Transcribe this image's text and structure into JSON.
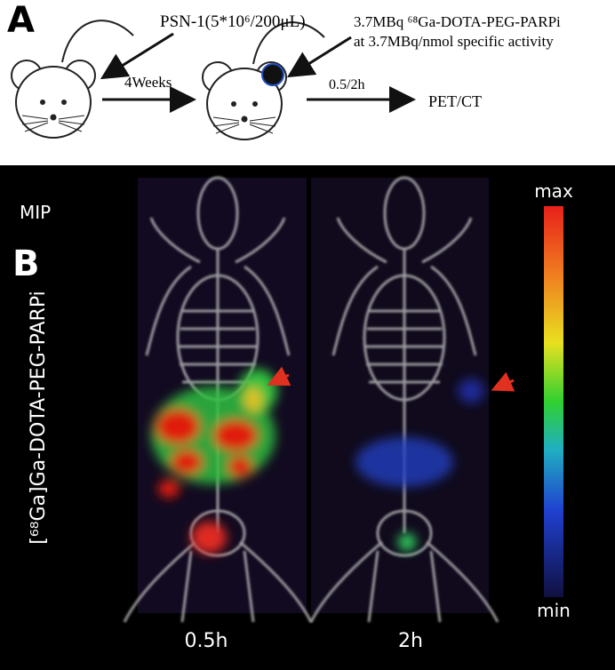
{
  "panel_a": {
    "label": "A",
    "injection": "PSN-1(5*10⁶/200μL)",
    "interval": "4Weeks",
    "tracer_line1": "3.7MBq ⁶⁸Ga-DOTA-PEG-PARPi",
    "tracer_line2": "at 3.7MBq/nmol specific activity",
    "timepoints": "0.5/2h",
    "imaging": "PET/CT"
  },
  "panel_b": {
    "label": "B",
    "mode": "MIP",
    "tracer": "[⁶⁸Ga]Ga-DOTA-PEG-PARPi",
    "scale_max": "max",
    "scale_min": "min",
    "times": [
      "0.5h",
      "2h"
    ]
  }
}
